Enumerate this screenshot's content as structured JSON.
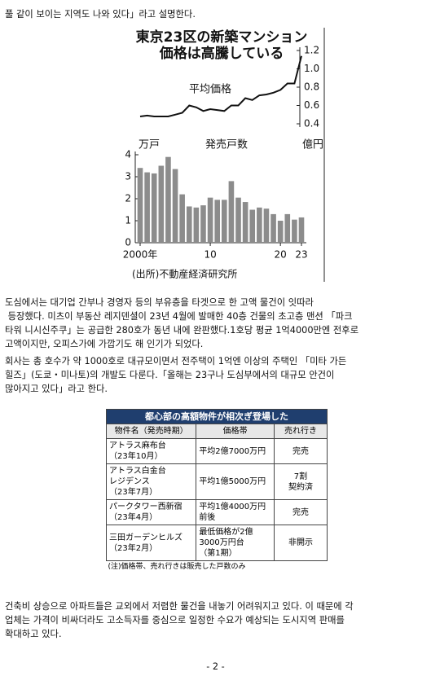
{
  "top_line": "풀 같이 보이는 지역도 나와 있다」라고 설명한다.",
  "chart_data": {
    "type": "combo",
    "title": [
      "東京23区の新築マンション",
      "価格は高騰している"
    ],
    "y_label": "万戸",
    "y2_label": "億円",
    "source": "(出所)不動産経済研究所",
    "x": [
      2000,
      2001,
      2002,
      2003,
      2004,
      2005,
      2006,
      2007,
      2008,
      2009,
      2010,
      2011,
      2012,
      2013,
      2014,
      2015,
      2016,
      2017,
      2018,
      2019,
      2020,
      2021,
      2022,
      2023
    ],
    "xlim": [
      2000,
      2023
    ],
    "xticks": [
      {
        "value": 2000,
        "label": "2000年"
      },
      {
        "value": 2010,
        "label": "10"
      },
      {
        "value": 2020,
        "label": "20"
      },
      {
        "value": 2023,
        "label": "23"
      }
    ],
    "ylim": [
      0,
      4
    ],
    "yticks": [
      0,
      1,
      2,
      3,
      4
    ],
    "y2lim": [
      0.4,
      1.2
    ],
    "y2ticks": [
      0.4,
      0.6,
      0.8,
      {
        "value": 1.0,
        "label": "1.0"
      },
      1.2
    ],
    "series": [
      {
        "name": "発売戸数",
        "type": "bar",
        "color": "#8c8c8c",
        "values": [
          3.4,
          3.2,
          3.15,
          3.5,
          3.9,
          3.35,
          2.2,
          1.65,
          1.6,
          1.7,
          2.05,
          1.95,
          1.95,
          2.8,
          2.05,
          1.85,
          1.5,
          1.6,
          1.55,
          1.3,
          1.0,
          1.3,
          1.05,
          1.15
        ]
      },
      {
        "name": "平均価格",
        "type": "line",
        "axis": "y2",
        "color": "#111111",
        "values": [
          0.48,
          0.49,
          0.48,
          0.48,
          0.48,
          0.5,
          0.52,
          0.6,
          0.58,
          0.54,
          0.56,
          0.55,
          0.54,
          0.6,
          0.6,
          0.68,
          0.66,
          0.71,
          0.72,
          0.74,
          0.77,
          0.84,
          0.84,
          1.14
        ]
      }
    ]
  },
  "paragraphs": [
    [
      "도심에서는 대기업 간부나 경영자 등의 부유층을 타겟으로 한 고액 물건이 잇따라",
      " 등장했다. 미츠이 부동산 레지덴셜이 23년 4월에 발매한 40층 건물의 초고층 맨션 「파크",
      "타워 니시신주쿠」는 공급한 280호가 동년 내에 완판했다.1호당 평균 1억4000만엔 전후로",
      "고액이지만, 오피스가에 가깝기도 해 인기가 되었다."
    ],
    [
      "회사는 총 호수가 약 1000호로 대규모이면서 전주택이 1억엔 이상의 주택인 「미타 가든",
      "힐즈」(도쿄・미나토)의 개발도 다룬다.「올해는 23구나 도심부에서의 대규모 안건이",
      "많아지고 있다」라고 한다."
    ],
    [
      "건축비 상승으로 아파트들은 교외에서 저렴한 물건을 내놓기 어려워지고 있다. 이 때문에 각",
      "업체는 가격이 비싸더라도 고소득자를 중심으로 일정한 수요가 예상되는 도시지역 판매를",
      "확대하고 있다."
    ]
  ],
  "table": {
    "title": "都心部の高額物件が相次ぎ登場した",
    "header": [
      "物件名（発売時期）",
      "価格帯",
      "売れ行き"
    ],
    "rows": [
      [
        [
          "アトラス麻布台",
          "（23年10月）"
        ],
        [
          "平均2億7000万円"
        ],
        [
          "完売"
        ]
      ],
      [
        [
          "アトラス白金台",
          "レジデンス",
          "（23年7月）"
        ],
        [
          "平均1億5000万円"
        ],
        [
          "7割",
          "契約済"
        ]
      ],
      [
        [
          "パークタワー西新宿",
          "（23年4月）"
        ],
        [
          "平均1億4000万円",
          "前後"
        ],
        [
          "完売"
        ]
      ],
      [
        [
          "三田ガーデンヒルズ",
          "（23年2月）"
        ],
        [
          "最低価格が2億",
          "3000万円台",
          "（第1期）"
        ],
        [
          "非開示"
        ]
      ]
    ],
    "note": "(注)価格帯、売れ行きは販売した戸数のみ"
  },
  "page_number": "- 2 -"
}
